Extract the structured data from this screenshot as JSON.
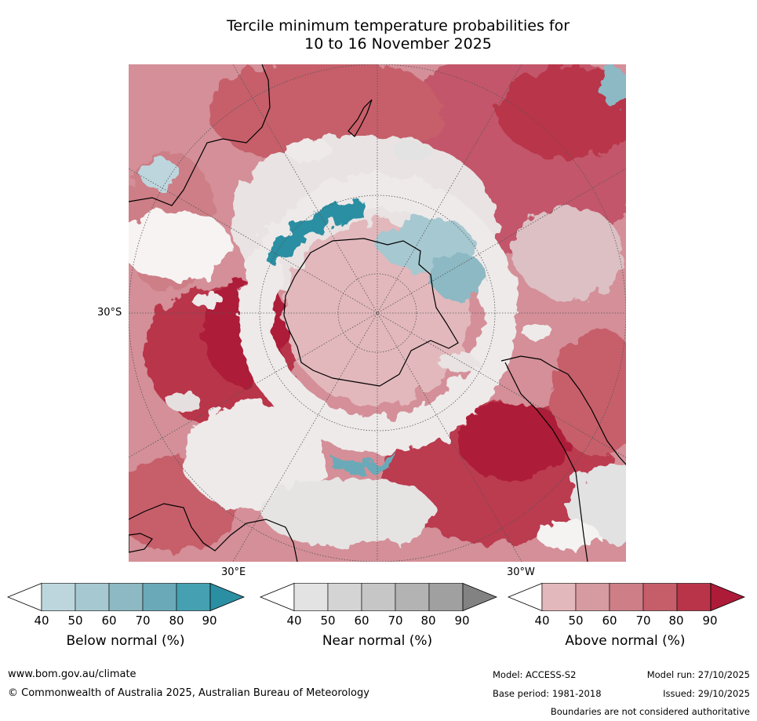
{
  "title": {
    "line1": "Tercile minimum temperature probabilities for",
    "line2": "10 to 16 November 2025"
  },
  "map": {
    "projection": "south-polar-stereographic",
    "lat_label": "30°S",
    "lon_label_east": "30°E",
    "lon_label_west": "30°W",
    "colors": {
      "background": "#ffffff",
      "graticule": "#555555",
      "coastline": "#000000"
    }
  },
  "colorbars": [
    {
      "id": "below",
      "label": "Below normal (%)",
      "ticks": [
        "40",
        "50",
        "60",
        "70",
        "80",
        "90"
      ],
      "colors": [
        "#bdd6dd",
        "#a6c8d0",
        "#8cb9c3",
        "#6aaab8",
        "#45a0b1",
        "#2b8fa3"
      ]
    },
    {
      "id": "near",
      "label": "Near normal (%)",
      "ticks": [
        "40",
        "50",
        "60",
        "70",
        "80",
        "90"
      ],
      "colors": [
        "#e3e3e3",
        "#d4d4d4",
        "#c6c6c6",
        "#b3b3b3",
        "#a0a0a0",
        "#828282"
      ]
    },
    {
      "id": "above",
      "label": "Above normal (%)",
      "ticks": [
        "40",
        "50",
        "60",
        "70",
        "80",
        "90"
      ],
      "colors": [
        "#e2b8bc",
        "#d69ba1",
        "#cd7e86",
        "#c65e6a",
        "#b93449",
        "#ad1b38"
      ]
    }
  ],
  "footer": {
    "website": "www.bom.gov.au/climate",
    "copyright": "© Commonwealth of Australia 2025, Australian Bureau of Meteorology",
    "model": "Model: ACCESS-S2",
    "base_period": "Base period: 1981-2018",
    "model_run": "Model run: 27/10/2025",
    "issued": "Issued: 29/10/2025",
    "disclaimer": "Boundaries are not considered authoritative"
  }
}
